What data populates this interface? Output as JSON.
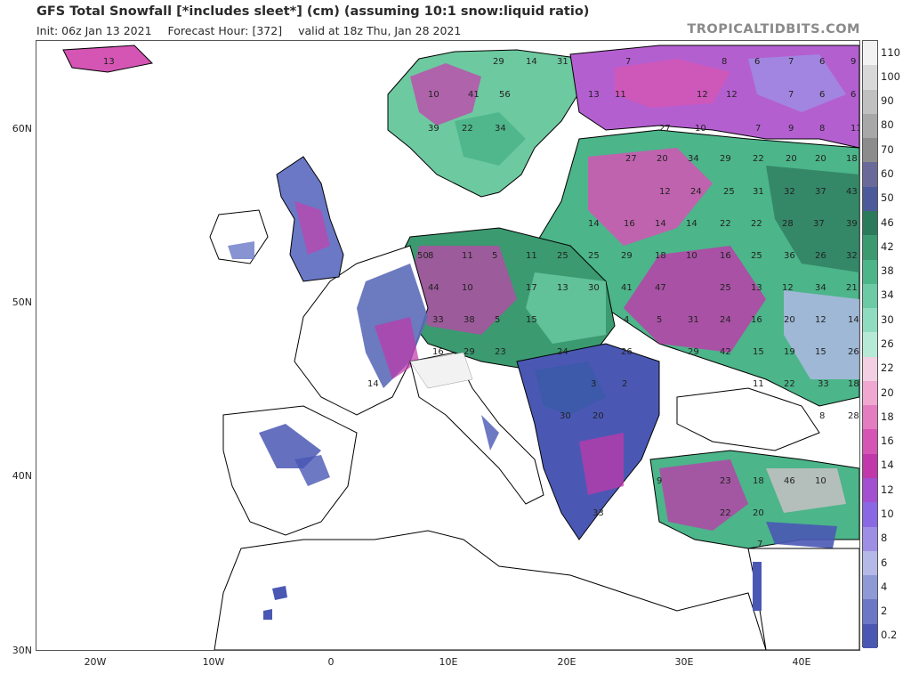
{
  "header": {
    "title": "GFS Total Snowfall [*includes sleet*] (cm) (assuming 10:1 snow:liquid ratio)",
    "init": "Init: 06z Jan 13 2021",
    "forecast_hour": "Forecast Hour: [372]",
    "valid": "valid at 18z Thu, Jan 28 2021",
    "brand": "TROPICALTIDBITS.COM"
  },
  "axes": {
    "latitudes": [
      "60N",
      "50N",
      "40N",
      "30N"
    ],
    "longitudes": [
      "20W",
      "10W",
      "0",
      "10E",
      "20E",
      "30E",
      "40E"
    ]
  },
  "colorbar": {
    "unit": "cm",
    "labels": [
      "110",
      "100",
      "90",
      "80",
      "70",
      "60",
      "50",
      "46",
      "42",
      "38",
      "34",
      "30",
      "26",
      "22",
      "20",
      "18",
      "16",
      "14",
      "12",
      "10",
      "8",
      "6",
      "4",
      "2",
      "0.2"
    ],
    "colors": [
      "#f2f2f2",
      "#d8d8d8",
      "#c0c0c0",
      "#a8a8a8",
      "#8c8c8c",
      "#6a6a9a",
      "#4a5a9a",
      "#2c7a5c",
      "#3b9a70",
      "#4cb58a",
      "#6ccaa4",
      "#90dcc0",
      "#b6ead6",
      "#f2cfe3",
      "#f0a8d0",
      "#e47cc0",
      "#d455b4",
      "#c038aa",
      "#a24fd0",
      "#8a68e4",
      "#9e8fe4",
      "#b4b9e8",
      "#8e9ad6",
      "#6a78c6",
      "#4a58b4"
    ]
  },
  "regions": {
    "land_outline_color": "#000000",
    "ocean_color": "#ffffff",
    "snow_values": [
      "13",
      "29",
      "14",
      "31",
      "7",
      "8",
      "6",
      "7",
      "6",
      "9",
      "10",
      "41",
      "56",
      "13",
      "11",
      "12",
      "12",
      "7",
      "6",
      "6",
      "39",
      "22",
      "34",
      "27",
      "10",
      "7",
      "9",
      "8",
      "11",
      "27",
      "20",
      "34",
      "29",
      "22",
      "20",
      "20",
      "18",
      "12",
      "24",
      "25",
      "31",
      "32",
      "37",
      "43",
      "14",
      "16",
      "14",
      "14",
      "22",
      "22",
      "28",
      "37",
      "39",
      "50",
      "11",
      "8",
      "5",
      "11",
      "25",
      "25",
      "29",
      "18",
      "10",
      "16",
      "25",
      "36",
      "26",
      "32",
      "44",
      "10",
      "17",
      "13",
      "30",
      "41",
      "47",
      "25",
      "13",
      "12",
      "34",
      "21",
      "33",
      "38",
      "5",
      "15",
      "4",
      "5",
      "31",
      "24",
      "16",
      "20",
      "12",
      "14",
      "29",
      "42",
      "15",
      "19",
      "15",
      "26",
      "29",
      "16",
      "23",
      "26",
      "11",
      "22",
      "33",
      "18",
      "24",
      "14",
      "3",
      "2",
      "30",
      "20",
      "8",
      "28",
      "9",
      "23",
      "18",
      "46",
      "10",
      "22",
      "20",
      "33",
      "7",
      "11"
    ]
  }
}
